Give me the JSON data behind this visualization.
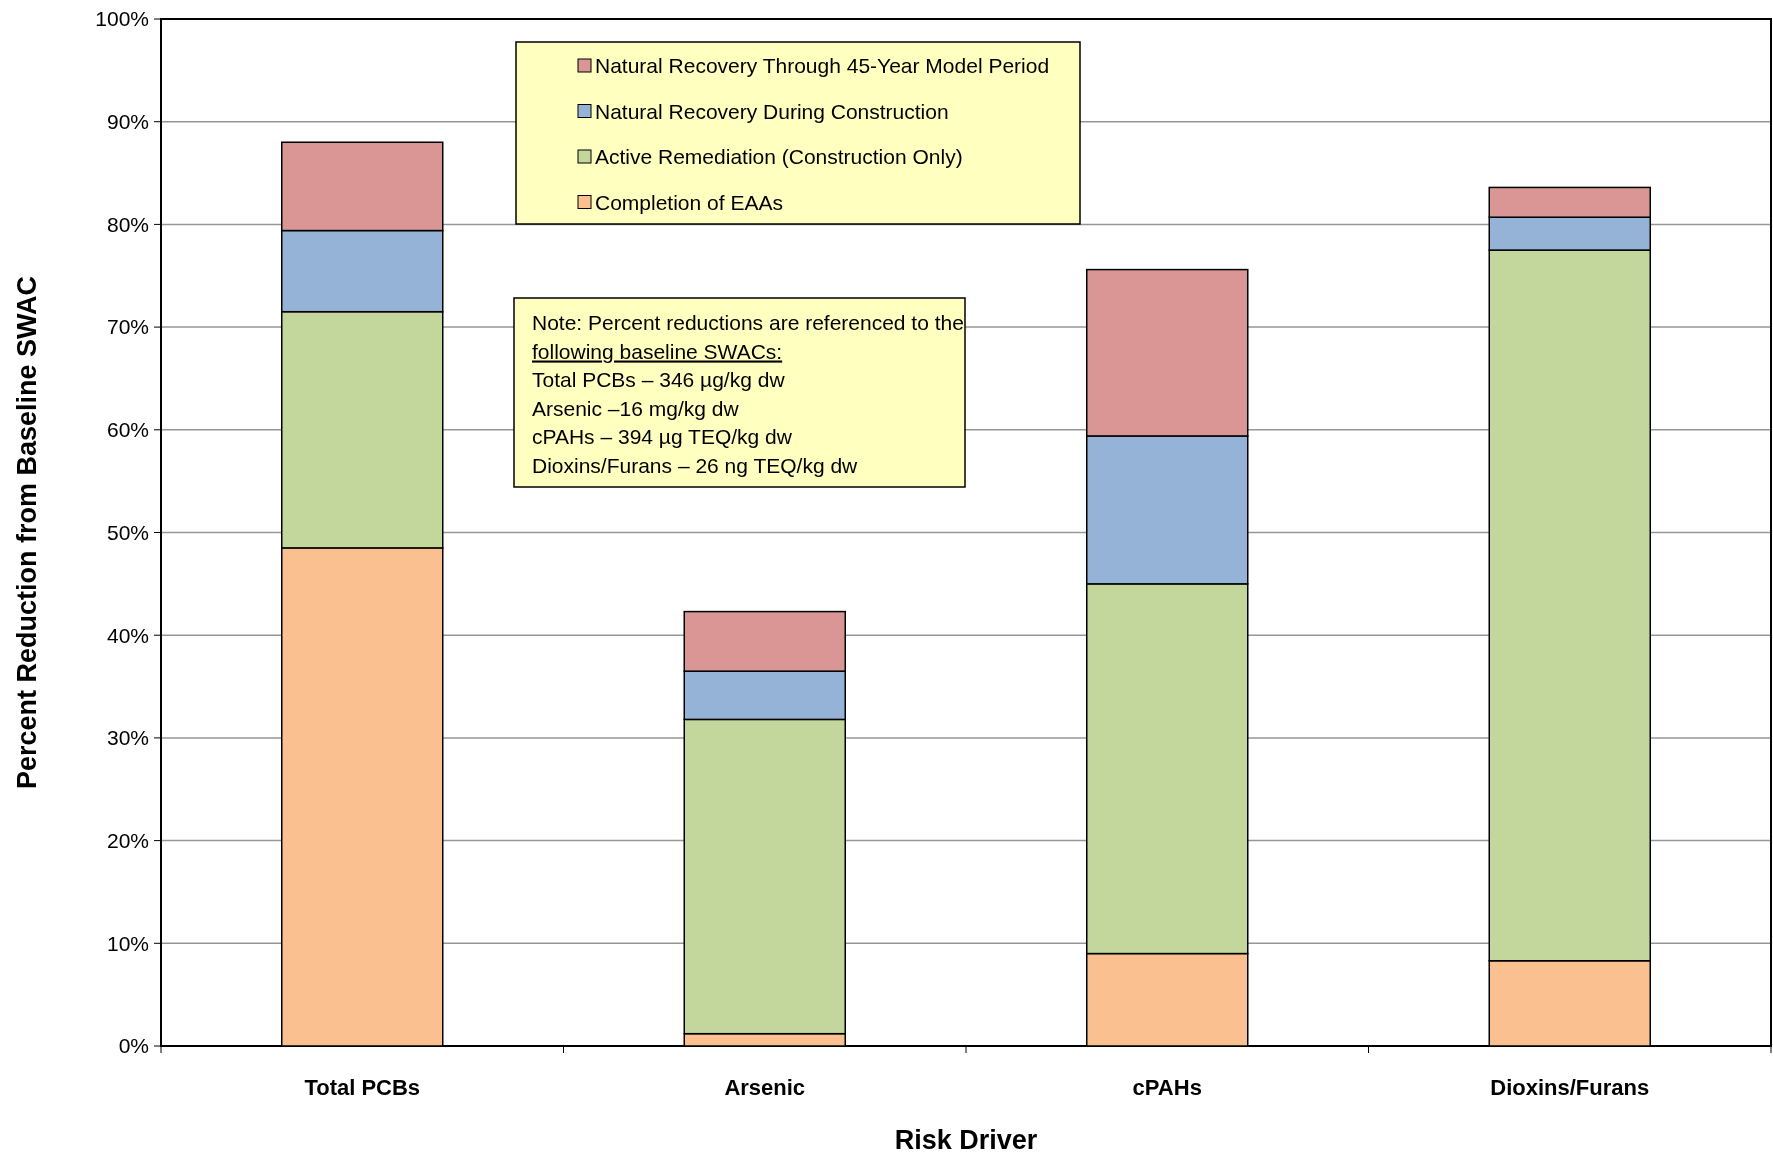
{
  "chart_data": {
    "type": "bar",
    "stacked": true,
    "xlabel": "Risk Driver",
    "ylabel": "Percent Reduction from Baseline SWAC",
    "categories": [
      "Total PCBs",
      "Arsenic",
      "cPAHs",
      "Dioxins/Furans"
    ],
    "series": [
      {
        "name": "Completion of EAAs",
        "color": "#fac090",
        "values": [
          48.5,
          1.2,
          9.0,
          8.3
        ]
      },
      {
        "name": "Active Remediation (Construction Only)",
        "color": "#c3d69b",
        "values": [
          23.0,
          30.6,
          36.0,
          69.2
        ]
      },
      {
        "name": "Natural Recovery During Construction",
        "color": "#95b3d7",
        "values": [
          7.9,
          4.7,
          14.4,
          3.2
        ]
      },
      {
        "name": "Natural Recovery Through 45-Year Model Period",
        "color": "#d99694",
        "values": [
          8.6,
          5.8,
          16.2,
          2.9
        ]
      }
    ],
    "ylim": [
      0,
      100
    ],
    "yticks": [
      {
        "value": 0,
        "label": "0%"
      },
      {
        "value": 10,
        "label": "10%"
      },
      {
        "value": 20,
        "label": "20%"
      },
      {
        "value": 30,
        "label": "30%"
      },
      {
        "value": 40,
        "label": "40%"
      },
      {
        "value": 50,
        "label": "50%"
      },
      {
        "value": 60,
        "label": "60%"
      },
      {
        "value": 70,
        "label": "70%"
      },
      {
        "value": 80,
        "label": "80%"
      },
      {
        "value": 90,
        "label": "90%"
      },
      {
        "value": 100,
        "label": "100%"
      }
    ],
    "grid": "y",
    "legend": "top",
    "annotations": [
      "Note: Percent reductions are referenced to the",
      "following baseline SWACs:",
      "Total PCBs – 346 µg/kg dw",
      "Arsenic –16 mg/kg dw",
      "cPAHs – 394 µg TEQ/kg dw",
      "Dioxins/Furans – 26 ng TEQ/kg dw"
    ]
  }
}
